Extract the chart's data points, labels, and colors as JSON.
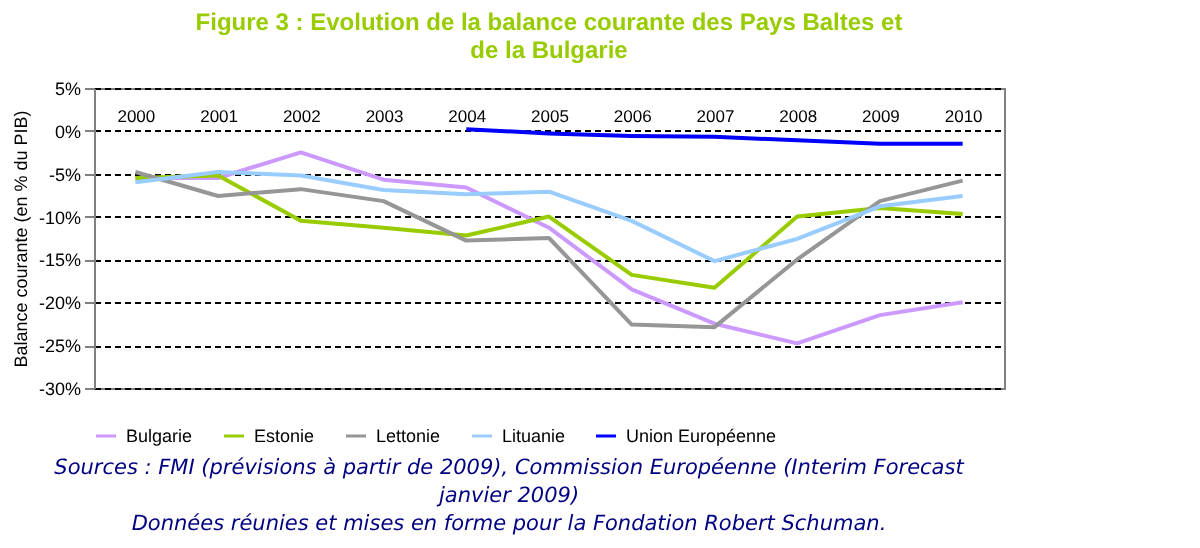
{
  "chart_data": {
    "type": "line",
    "title": "Figure 3 : Evolution de la balance courante des Pays Baltes et\nde la Bulgarie",
    "ylabel": "Balance courante (en % du PIB)",
    "categories": [
      "2000",
      "2001",
      "2002",
      "2003",
      "2004",
      "2005",
      "2006",
      "2007",
      "2008",
      "2009",
      "2010"
    ],
    "series": [
      {
        "name": "Bulgarie",
        "color": "#cc99ff",
        "values": [
          -5.5,
          -5.5,
          -2.5,
          -5.7,
          -6.6,
          -11.3,
          -18.5,
          -22.5,
          -24.8,
          -21.5,
          -20
        ]
      },
      {
        "name": "Estonie",
        "color": "#99cc00",
        "values": [
          -5.5,
          -5.2,
          -10.5,
          -11.3,
          -12.2,
          -10,
          -16.8,
          -18.3,
          -10,
          -9,
          -9.7
        ]
      },
      {
        "name": "Lettonie",
        "color": "#969696",
        "values": [
          -4.8,
          -7.6,
          -6.8,
          -8.2,
          -12.8,
          -12.5,
          -22.6,
          -22.9,
          -15,
          -8.2,
          -5.8
        ]
      },
      {
        "name": "Lituanie",
        "color": "#99ccff",
        "values": [
          -6,
          -4.8,
          -5.2,
          -6.9,
          -7.4,
          -7.1,
          -10.5,
          -15.2,
          -12.6,
          -8.8,
          -7.6
        ]
      },
      {
        "name": "Union Européenne",
        "color": "#0000ff",
        "values": [
          null,
          null,
          null,
          null,
          0.2,
          -0.3,
          -0.6,
          -0.7,
          -1.1,
          -1.5,
          -1.5
        ]
      }
    ],
    "ylim": [
      -30,
      5
    ],
    "yticks": [
      {
        "value": 5,
        "label": "5%"
      },
      {
        "value": 0,
        "label": "0%"
      },
      {
        "value": -5,
        "label": "-5%"
      },
      {
        "value": -10,
        "label": "-10%"
      },
      {
        "value": -15,
        "label": "-15%"
      },
      {
        "value": -20,
        "label": "-20%"
      },
      {
        "value": -25,
        "label": "-25%"
      },
      {
        "value": -30,
        "label": "-30%"
      }
    ],
    "grid": "y",
    "legend": "bottom",
    "marker": "none",
    "line_style": "solid",
    "annotations": [
      "Sources : FMI (prévisions à partir de 2009), Commission Européenne (Interim Forecast janvier 2009)",
      "Données réunies et mises en forme pour la Fondation Robert Schuman."
    ]
  }
}
